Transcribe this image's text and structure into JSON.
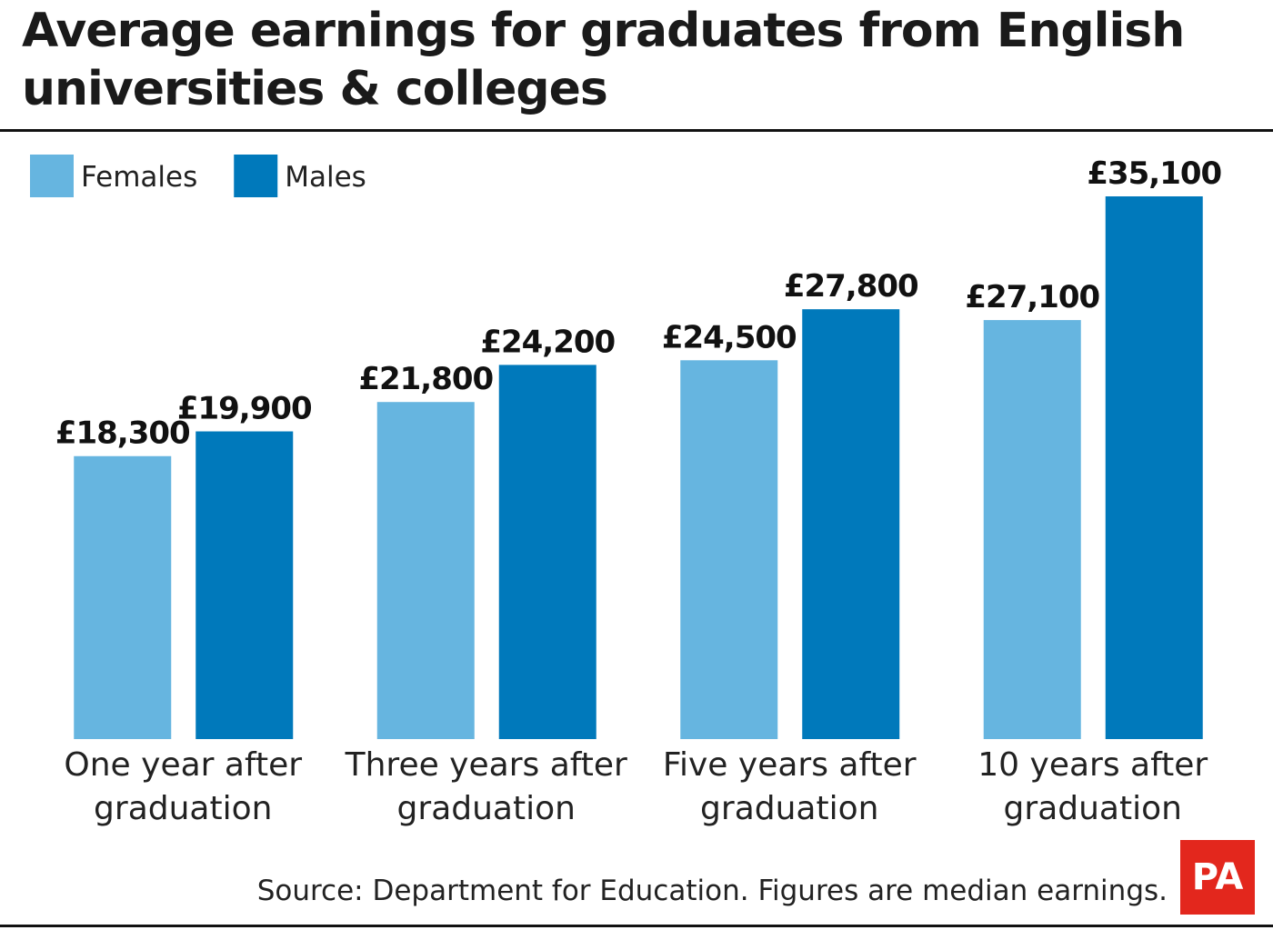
{
  "chart_data": {
    "type": "bar",
    "title": "Average earnings for graduates from English universities & colleges",
    "categories": [
      "One year after graduation",
      "Three years after graduation",
      "Five years after graduation",
      "10 years after graduation"
    ],
    "series": [
      {
        "name": "Females",
        "color": "#66b5e0",
        "values": [
          18300,
          21800,
          24500,
          27100
        ],
        "value_labels": [
          "£18,300",
          "£21,800",
          "£24,500",
          "£27,100"
        ]
      },
      {
        "name": "Males",
        "color": "#0079bb",
        "values": [
          19900,
          24200,
          27800,
          35100
        ],
        "value_labels": [
          "£19,900",
          "£24,200",
          "£27,800",
          "£35,100"
        ]
      }
    ],
    "source": "Source: Department for Education. Figures are median earnings.",
    "logo": "PA"
  }
}
